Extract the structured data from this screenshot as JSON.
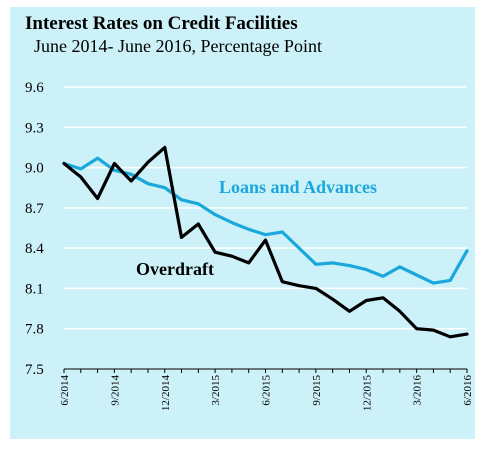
{
  "chart_data": {
    "type": "line",
    "title": "Interest Rates on Credit Facilities",
    "subtitle": "June 2014- June 2016, Percentage Point",
    "ylim": [
      7.5,
      9.6
    ],
    "yticks": [
      "9.6",
      "9.3",
      "9.0",
      "8.7",
      "8.4",
      "8.1",
      "7.8",
      "7.5"
    ],
    "ytick_values": [
      9.6,
      9.3,
      9.0,
      8.7,
      8.4,
      8.1,
      7.8,
      7.5
    ],
    "x": [
      "6/2014",
      "7/2014",
      "8/2014",
      "9/2014",
      "10/2014",
      "11/2014",
      "12/2014",
      "1/2015",
      "2/2015",
      "3/2015",
      "4/2015",
      "5/2015",
      "6/2015",
      "7/2015",
      "8/2015",
      "9/2015",
      "10/2015",
      "11/2015",
      "12/2015",
      "1/2016",
      "2/2016",
      "3/2016",
      "4/2016",
      "5/2016",
      "6/2016"
    ],
    "xticks": [
      "6/2014",
      "9/2014",
      "12/2014",
      "3/2015",
      "6/2015",
      "9/2015",
      "12/2015",
      "3/2016",
      "6/2016"
    ],
    "xtick_index": [
      0,
      3,
      6,
      9,
      12,
      15,
      18,
      21,
      24
    ],
    "grid": true,
    "colors": {
      "background": "#ccf1f8",
      "loans": "#1aa7dc",
      "overdraft": "#000000",
      "grid": "#ffffff"
    },
    "annotations": {
      "loans": "Loans and Advances",
      "overdraft": "Overdraft"
    },
    "series": [
      {
        "name": "Loans and Advances",
        "values": [
          9.03,
          8.99,
          9.07,
          8.98,
          8.95,
          8.88,
          8.85,
          8.76,
          8.73,
          8.65,
          8.59,
          8.54,
          8.5,
          8.52,
          8.4,
          8.28,
          8.29,
          8.27,
          8.24,
          8.19,
          8.26,
          8.2,
          8.14,
          8.16,
          8.38
        ]
      },
      {
        "name": "Overdraft",
        "values": [
          9.03,
          8.93,
          8.77,
          9.03,
          8.9,
          9.04,
          9.15,
          8.48,
          8.58,
          8.37,
          8.34,
          8.29,
          8.46,
          8.15,
          8.12,
          8.1,
          8.02,
          7.93,
          8.01,
          8.03,
          7.93,
          7.8,
          7.79,
          7.74,
          7.76
        ]
      }
    ]
  }
}
